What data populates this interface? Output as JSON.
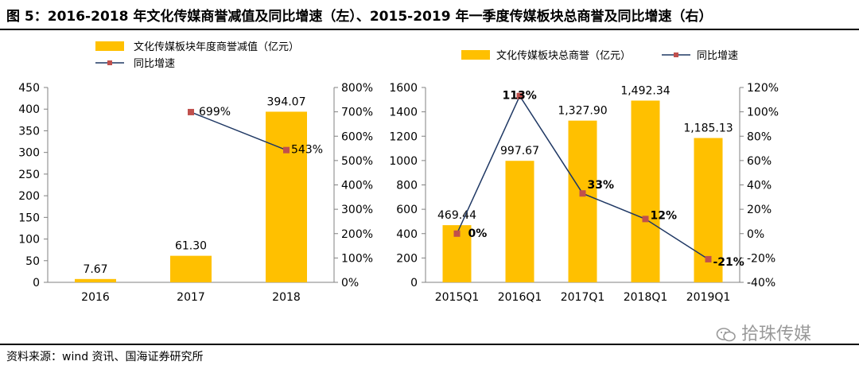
{
  "figure_title": "图 5：2016-2018 年文化传媒商誉减值及同比增速（左）、2015-2019 年一季度传媒板块总商誉及同比增速（右）",
  "source_note": "资料来源：wind 资讯、国海证券研究所",
  "watermark": "拾珠传媒",
  "colors": {
    "bar": "#FFC000",
    "line": "#1F3864",
    "marker": "#C0504D",
    "axis": "#808080"
  },
  "chart_data": [
    {
      "type": "bar",
      "title": "",
      "legend": [
        {
          "kind": "bar",
          "label": "文化传媒板块年度商誉减值（亿元）"
        },
        {
          "kind": "line",
          "label": "同比增速"
        }
      ],
      "categories": [
        "2016",
        "2017",
        "2018"
      ],
      "series": [
        {
          "name": "文化传媒板块年度商誉减值（亿元）",
          "kind": "bar",
          "axis": "left",
          "values": [
            7.67,
            61.3,
            394.07
          ],
          "labels": [
            "7.67",
            "61.30",
            "394.07"
          ]
        },
        {
          "name": "同比增速",
          "kind": "line",
          "axis": "right",
          "values": [
            null,
            699,
            543
          ],
          "labels": [
            "",
            "699%",
            "543%"
          ]
        }
      ],
      "y_left": {
        "min": 0,
        "max": 450,
        "ticks": [
          "0",
          "50",
          "100",
          "150",
          "200",
          "250",
          "300",
          "350",
          "400",
          "450"
        ]
      },
      "y_right": {
        "min": 0,
        "max": 800,
        "ticks": [
          "0%",
          "100%",
          "200%",
          "300%",
          "400%",
          "500%",
          "600%",
          "700%",
          "800%"
        ]
      }
    },
    {
      "type": "bar",
      "title": "",
      "legend": [
        {
          "kind": "bar",
          "label": "文化传媒板块总商誉（亿元）"
        },
        {
          "kind": "line",
          "label": "同比增速"
        }
      ],
      "categories": [
        "2015Q1",
        "2016Q1",
        "2017Q1",
        "2018Q1",
        "2019Q1"
      ],
      "series": [
        {
          "name": "文化传媒板块总商誉（亿元）",
          "kind": "bar",
          "axis": "left",
          "values": [
            469.44,
            997.67,
            1327.9,
            1492.34,
            1185.13
          ],
          "labels": [
            "469.44",
            "997.67",
            "1,327.90",
            "1,492.34",
            "1,185.13"
          ]
        },
        {
          "name": "同比增速",
          "kind": "line",
          "axis": "right",
          "values": [
            0,
            113,
            33,
            12,
            -21
          ],
          "labels": [
            "0%",
            "113%",
            "33%",
            "12%",
            "-21%"
          ]
        }
      ],
      "y_left": {
        "min": 0,
        "max": 1600,
        "ticks": [
          "0",
          "200",
          "400",
          "600",
          "800",
          "1000",
          "1200",
          "1400",
          "1600"
        ]
      },
      "y_right": {
        "min": -40,
        "max": 120,
        "ticks": [
          "-40%",
          "-20%",
          "0%",
          "20%",
          "40%",
          "60%",
          "80%",
          "100%",
          "120%"
        ]
      }
    }
  ]
}
